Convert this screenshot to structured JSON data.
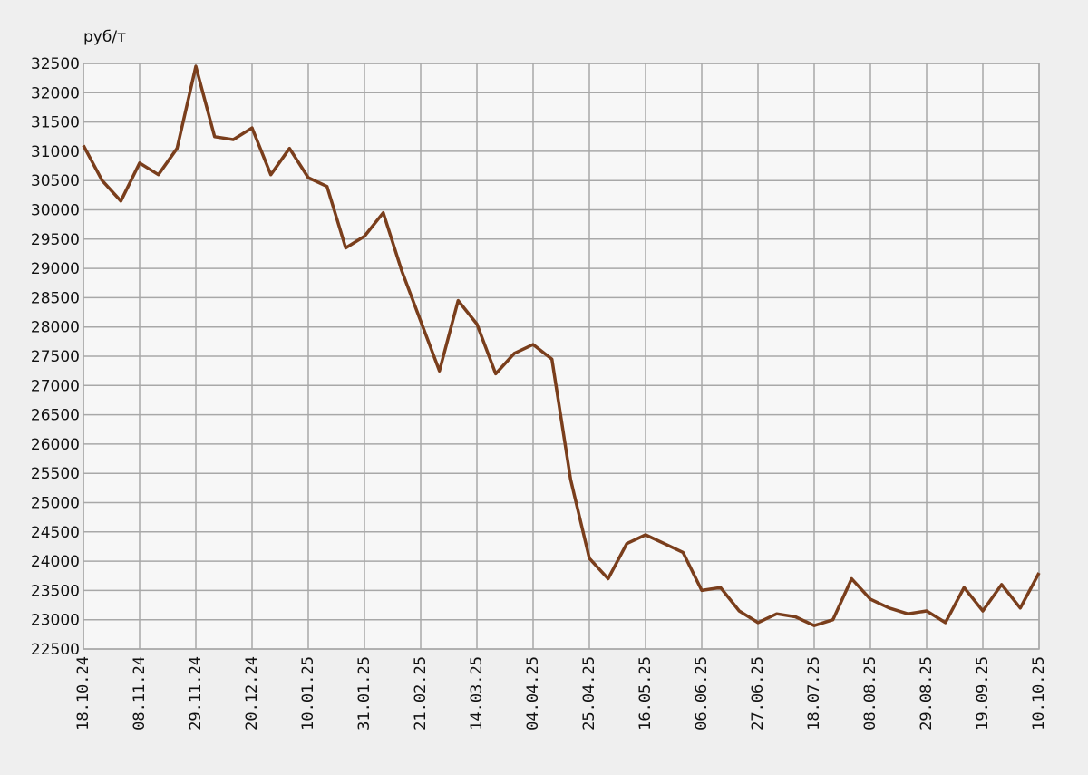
{
  "chart_data": {
    "type": "line",
    "y_label": "руб/т",
    "categories": [
      "18.10.24",
      null,
      null,
      "08.11.24",
      null,
      null,
      "29.11.24",
      null,
      null,
      "20.12.24",
      null,
      null,
      "10.01.25",
      null,
      null,
      "31.01.25",
      null,
      null,
      "21.02.25",
      null,
      null,
      "14.03.25",
      null,
      null,
      "04.04.25",
      null,
      null,
      "25.04.25",
      null,
      null,
      "16.05.25",
      null,
      null,
      "06.06.25",
      null,
      null,
      "27.06.25",
      null,
      null,
      "18.07.25",
      null,
      null,
      "08.08.25",
      null,
      null,
      "29.08.25",
      null,
      null,
      "19.09.25",
      null,
      null,
      "10.10.25"
    ],
    "values": [
      31100,
      30500,
      30150,
      30800,
      30600,
      31050,
      32450,
      31250,
      31200,
      31400,
      30600,
      31050,
      30550,
      30400,
      29350,
      29550,
      29950,
      28950,
      28100,
      27250,
      28450,
      28050,
      27200,
      27550,
      27700,
      27450,
      25400,
      24050,
      23700,
      24300,
      24450,
      24300,
      24150,
      23500,
      23550,
      23150,
      22950,
      23100,
      23050,
      22900,
      23000,
      23700,
      23350,
      23200,
      23100,
      23150,
      22950,
      23550,
      23150,
      23600,
      23200,
      23800
    ],
    "color": "#7a3e1c",
    "ylim": [
      22500,
      32500
    ],
    "yticks": [
      22500,
      23000,
      23500,
      24000,
      24500,
      25000,
      25500,
      26000,
      26500,
      27000,
      27500,
      28000,
      28500,
      29000,
      29500,
      30000,
      30500,
      31000,
      31500,
      32000,
      32500
    ],
    "grid": true
  }
}
